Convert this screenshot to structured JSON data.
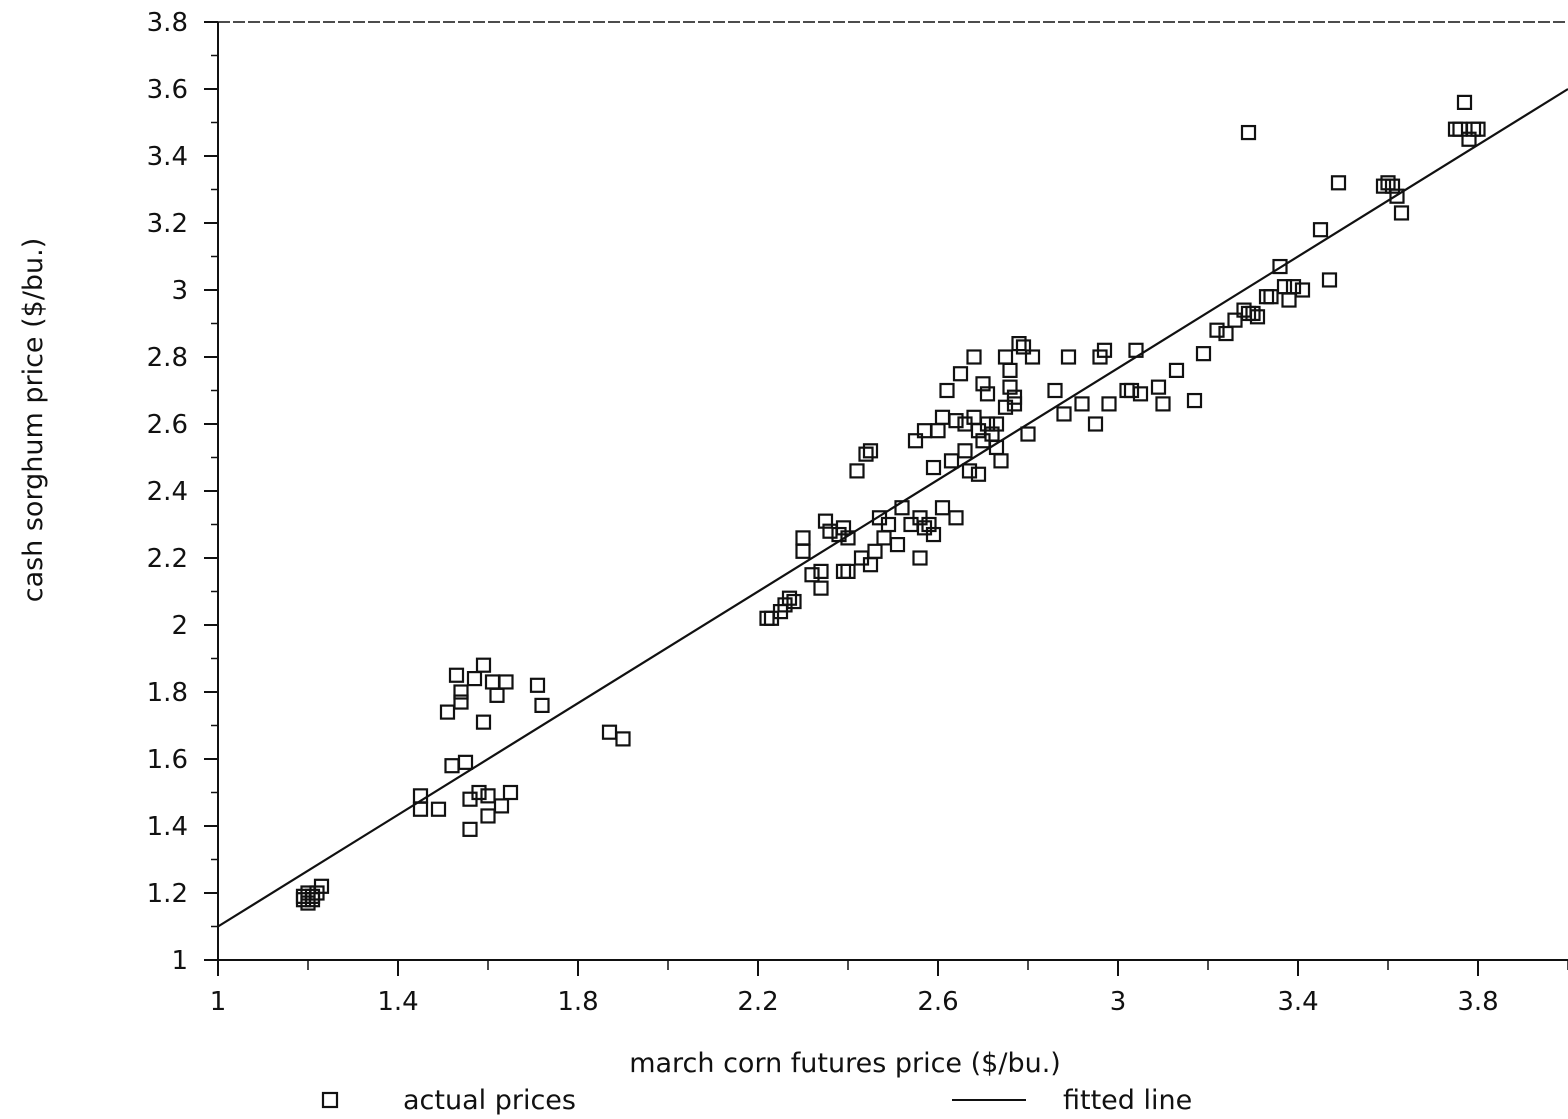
{
  "chart_data": {
    "type": "scatter",
    "title": "",
    "xlabel": "march corn futures price ($/bu.)",
    "ylabel": "cash sorghum price ($/bu.)",
    "xlim": [
      1,
      4.0
    ],
    "ylim": [
      1,
      3.8
    ],
    "x_ticks": [
      "1",
      "1.4",
      "1.8",
      "2.2",
      "2.6",
      "3",
      "3.4",
      "3.8"
    ],
    "y_ticks": [
      "1",
      "1.2",
      "1.4",
      "1.6",
      "1.8",
      "2",
      "2.2",
      "2.4",
      "2.6",
      "2.8",
      "3",
      "3.2",
      "3.4",
      "3.6",
      "3.8"
    ],
    "grid": false,
    "legend": {
      "position": "bottom",
      "entries": [
        {
          "label": "actual prices",
          "marker": "square"
        },
        {
          "label": "fitted line",
          "marker": "line"
        }
      ]
    },
    "series": [
      {
        "name": "actual prices",
        "type": "scatter",
        "marker": "square",
        "points": [
          [
            1.19,
            1.18
          ],
          [
            1.2,
            1.2
          ],
          [
            1.21,
            1.19
          ],
          [
            1.2,
            1.17
          ],
          [
            1.22,
            1.2
          ],
          [
            1.21,
            1.18
          ],
          [
            1.23,
            1.22
          ],
          [
            1.19,
            1.19
          ],
          [
            1.45,
            1.49
          ],
          [
            1.45,
            1.45
          ],
          [
            1.49,
            1.45
          ],
          [
            1.51,
            1.74
          ],
          [
            1.52,
            1.58
          ],
          [
            1.53,
            1.85
          ],
          [
            1.54,
            1.77
          ],
          [
            1.54,
            1.8
          ],
          [
            1.55,
            1.59
          ],
          [
            1.56,
            1.48
          ],
          [
            1.56,
            1.39
          ],
          [
            1.57,
            1.84
          ],
          [
            1.58,
            1.5
          ],
          [
            1.59,
            1.88
          ],
          [
            1.59,
            1.71
          ],
          [
            1.6,
            1.49
          ],
          [
            1.6,
            1.43
          ],
          [
            1.61,
            1.83
          ],
          [
            1.62,
            1.79
          ],
          [
            1.63,
            1.46
          ],
          [
            1.64,
            1.83
          ],
          [
            1.65,
            1.5
          ],
          [
            1.71,
            1.82
          ],
          [
            1.72,
            1.76
          ],
          [
            1.87,
            1.68
          ],
          [
            1.9,
            1.66
          ],
          [
            2.22,
            2.02
          ],
          [
            2.23,
            2.02
          ],
          [
            2.25,
            2.04
          ],
          [
            2.26,
            2.06
          ],
          [
            2.27,
            2.08
          ],
          [
            2.28,
            2.07
          ],
          [
            2.3,
            2.26
          ],
          [
            2.3,
            2.22
          ],
          [
            2.32,
            2.15
          ],
          [
            2.34,
            2.16
          ],
          [
            2.34,
            2.11
          ],
          [
            2.35,
            2.31
          ],
          [
            2.36,
            2.28
          ],
          [
            2.38,
            2.27
          ],
          [
            2.39,
            2.16
          ],
          [
            2.39,
            2.29
          ],
          [
            2.4,
            2.16
          ],
          [
            2.4,
            2.26
          ],
          [
            2.42,
            2.46
          ],
          [
            2.43,
            2.2
          ],
          [
            2.44,
            2.51
          ],
          [
            2.45,
            2.52
          ],
          [
            2.45,
            2.18
          ],
          [
            2.46,
            2.22
          ],
          [
            2.47,
            2.32
          ],
          [
            2.48,
            2.26
          ],
          [
            2.49,
            2.3
          ],
          [
            2.51,
            2.24
          ],
          [
            2.52,
            2.35
          ],
          [
            2.54,
            2.3
          ],
          [
            2.55,
            2.55
          ],
          [
            2.56,
            2.32
          ],
          [
            2.56,
            2.2
          ],
          [
            2.57,
            2.29
          ],
          [
            2.57,
            2.58
          ],
          [
            2.58,
            2.3
          ],
          [
            2.59,
            2.47
          ],
          [
            2.59,
            2.27
          ],
          [
            2.6,
            2.58
          ],
          [
            2.61,
            2.62
          ],
          [
            2.61,
            2.35
          ],
          [
            2.62,
            2.7
          ],
          [
            2.63,
            2.49
          ],
          [
            2.64,
            2.61
          ],
          [
            2.64,
            2.32
          ],
          [
            2.65,
            2.75
          ],
          [
            2.66,
            2.52
          ],
          [
            2.66,
            2.6
          ],
          [
            2.67,
            2.46
          ],
          [
            2.68,
            2.8
          ],
          [
            2.68,
            2.62
          ],
          [
            2.69,
            2.45
          ],
          [
            2.69,
            2.58
          ],
          [
            2.7,
            2.72
          ],
          [
            2.7,
            2.55
          ],
          [
            2.71,
            2.6
          ],
          [
            2.71,
            2.69
          ],
          [
            2.72,
            2.57
          ],
          [
            2.73,
            2.53
          ],
          [
            2.73,
            2.6
          ],
          [
            2.74,
            2.49
          ],
          [
            2.75,
            2.65
          ],
          [
            2.75,
            2.8
          ],
          [
            2.76,
            2.76
          ],
          [
            2.76,
            2.71
          ],
          [
            2.77,
            2.66
          ],
          [
            2.77,
            2.68
          ],
          [
            2.78,
            2.84
          ],
          [
            2.79,
            2.83
          ],
          [
            2.8,
            2.57
          ],
          [
            2.81,
            2.8
          ],
          [
            2.86,
            2.7
          ],
          [
            2.88,
            2.63
          ],
          [
            2.89,
            2.8
          ],
          [
            2.92,
            2.66
          ],
          [
            2.95,
            2.6
          ],
          [
            2.96,
            2.8
          ],
          [
            2.97,
            2.82
          ],
          [
            2.98,
            2.66
          ],
          [
            3.02,
            2.7
          ],
          [
            3.03,
            2.7
          ],
          [
            3.04,
            2.82
          ],
          [
            3.05,
            2.69
          ],
          [
            3.09,
            2.71
          ],
          [
            3.1,
            2.66
          ],
          [
            3.13,
            2.76
          ],
          [
            3.17,
            2.67
          ],
          [
            3.19,
            2.81
          ],
          [
            3.22,
            2.88
          ],
          [
            3.24,
            2.87
          ],
          [
            3.26,
            2.91
          ],
          [
            3.28,
            2.94
          ],
          [
            3.29,
            2.93
          ],
          [
            3.3,
            2.93
          ],
          [
            3.31,
            2.92
          ],
          [
            3.33,
            2.98
          ],
          [
            3.34,
            2.98
          ],
          [
            3.36,
            3.07
          ],
          [
            3.37,
            3.01
          ],
          [
            3.38,
            2.97
          ],
          [
            3.39,
            3.01
          ],
          [
            3.41,
            3.0
          ],
          [
            3.45,
            3.18
          ],
          [
            3.47,
            3.03
          ],
          [
            3.49,
            3.32
          ],
          [
            3.29,
            3.47
          ],
          [
            3.59,
            3.31
          ],
          [
            3.6,
            3.32
          ],
          [
            3.61,
            3.31
          ],
          [
            3.62,
            3.28
          ],
          [
            3.63,
            3.23
          ],
          [
            3.75,
            3.48
          ],
          [
            3.76,
            3.48
          ],
          [
            3.77,
            3.56
          ],
          [
            3.78,
            3.45
          ],
          [
            3.79,
            3.48
          ],
          [
            3.8,
            3.48
          ]
        ]
      },
      {
        "name": "fitted line",
        "type": "line",
        "points": [
          [
            1.0,
            1.1
          ],
          [
            4.0,
            3.6
          ]
        ]
      }
    ]
  }
}
